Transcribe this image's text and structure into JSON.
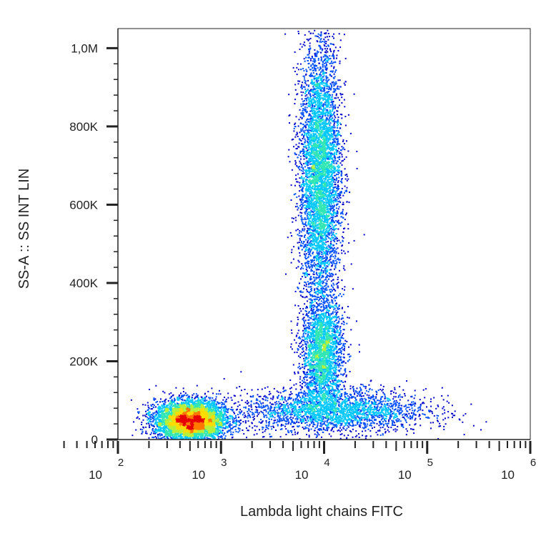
{
  "chart_data": {
    "type": "scatter",
    "subtype": "flow-cytometry-density-dot-plot",
    "title": "",
    "xlabel": "Lambda light chains FITC",
    "ylabel": "SS-A :: SS INT LIN",
    "x_scale": "log",
    "xlim": [
      100.0,
      1000000.0
    ],
    "ylim": [
      0,
      1050000
    ],
    "x_ticks": [
      {
        "base": "10",
        "exp": "2",
        "value": 100
      },
      {
        "base": "10",
        "exp": "3",
        "value": 1000
      },
      {
        "base": "10",
        "exp": "4",
        "value": 10000
      },
      {
        "base": "10",
        "exp": "5",
        "value": 100000
      },
      {
        "base": "10",
        "exp": "6",
        "value": 1000000
      }
    ],
    "y_ticks": [
      {
        "label": "0",
        "value": 0
      },
      {
        "label": "200K",
        "value": 200000
      },
      {
        "label": "400K",
        "value": 400000
      },
      {
        "label": "600K",
        "value": 600000
      },
      {
        "label": "800K",
        "value": 800000
      },
      {
        "label": "1,0M",
        "value": 1000000
      }
    ],
    "grid": false,
    "legend": "none",
    "colormap": [
      "#0000c8",
      "#0050ff",
      "#00c8ff",
      "#32e6b4",
      "#b4f03c",
      "#ffdc00",
      "#ff7800",
      "#e60000"
    ],
    "populations": [
      {
        "center_x": 500,
        "center_y": 50000,
        "spread_log_x": 0.17,
        "spread_y": 25000,
        "relative_density": "high"
      },
      {
        "center_x": 9000,
        "center_y": 680000,
        "spread_log_x": 0.1,
        "spread_y": 170000,
        "relative_density": "high"
      },
      {
        "center_x": 9500,
        "center_y": 220000,
        "spread_log_x": 0.1,
        "spread_y": 70000,
        "relative_density": "medium"
      },
      {
        "center_x": 12000,
        "center_y": 75000,
        "spread_log_x": 0.45,
        "spread_y": 28000,
        "relative_density": "medium"
      }
    ]
  }
}
